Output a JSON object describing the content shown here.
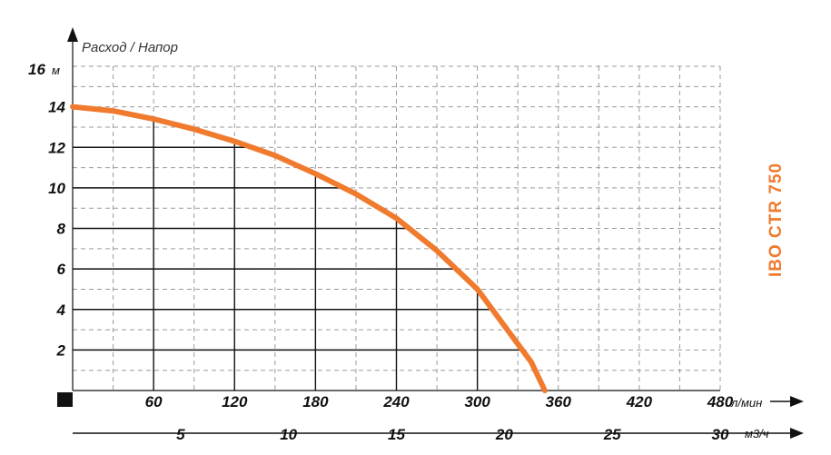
{
  "chart_data": {
    "type": "line",
    "title": "Расход / Напор",
    "model_label": "IBO CTR 750",
    "colors": {
      "curve": "#f07a2e",
      "model_label": "#f07a2e",
      "grid_major": "#111111",
      "grid_minor": "#9a9a9a"
    },
    "y_axis": {
      "unit": "м",
      "top_label": "16",
      "ticks": [
        "2",
        "4",
        "6",
        "8",
        "10",
        "12",
        "14"
      ],
      "range": [
        0,
        16
      ]
    },
    "x_axis_primary": {
      "unit": "л/мин",
      "ticks": [
        "60",
        "120",
        "180",
        "240",
        "300",
        "360",
        "420",
        "480"
      ],
      "range": [
        0,
        480
      ]
    },
    "x_axis_secondary": {
      "unit": "м3/ч",
      "ticks": [
        "5",
        "10",
        "15",
        "20",
        "25",
        "30"
      ],
      "range": [
        0,
        30
      ]
    },
    "grid": true,
    "series": [
      {
        "x": [
          0,
          30,
          60,
          90,
          120,
          150,
          180,
          210,
          240,
          270,
          300,
          320,
          340,
          350
        ],
        "y": [
          14.0,
          13.8,
          13.4,
          12.9,
          12.3,
          11.6,
          10.7,
          9.7,
          8.5,
          6.9,
          5.0,
          3.2,
          1.4,
          0.0
        ]
      }
    ]
  }
}
